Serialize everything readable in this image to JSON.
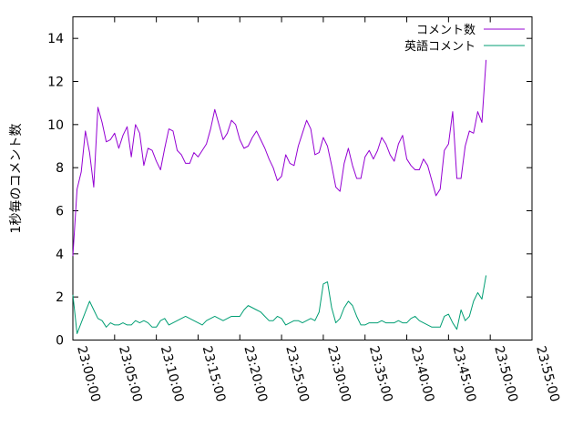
{
  "chart_data": {
    "type": "line",
    "ylabel": "1秒毎のコメント数",
    "xlim": [
      "23:00:00",
      "23:55:00"
    ],
    "ylim": [
      0,
      15
    ],
    "x_ticks": [
      "23:00:00",
      "23:05:00",
      "23:10:00",
      "23:15:00",
      "23:20:00",
      "23:25:00",
      "23:30:00",
      "23:35:00",
      "23:40:00",
      "23:45:00",
      "23:50:00",
      "23:55:00"
    ],
    "y_ticks": [
      "0",
      "2",
      "4",
      "6",
      "8",
      "10",
      "12",
      "14"
    ],
    "legend_position": "top-right",
    "grid": false,
    "series": [
      {
        "name": "コメント数",
        "color": "#9400d3",
        "points": [
          [
            "23:00:00",
            3.9
          ],
          [
            "23:00:30",
            7.0
          ],
          [
            "23:01:00",
            7.8
          ],
          [
            "23:01:30",
            9.7
          ],
          [
            "23:02:00",
            8.7
          ],
          [
            "23:02:30",
            7.1
          ],
          [
            "23:03:00",
            10.8
          ],
          [
            "23:03:30",
            10.1
          ],
          [
            "23:04:00",
            9.2
          ],
          [
            "23:04:30",
            9.3
          ],
          [
            "23:05:00",
            9.6
          ],
          [
            "23:05:30",
            8.9
          ],
          [
            "23:06:00",
            9.5
          ],
          [
            "23:06:30",
            9.9
          ],
          [
            "23:07:00",
            8.5
          ],
          [
            "23:07:30",
            10.0
          ],
          [
            "23:08:00",
            9.6
          ],
          [
            "23:08:30",
            8.1
          ],
          [
            "23:09:00",
            8.9
          ],
          [
            "23:09:30",
            8.8
          ],
          [
            "23:10:00",
            8.3
          ],
          [
            "23:10:30",
            7.9
          ],
          [
            "23:11:00",
            8.9
          ],
          [
            "23:11:30",
            9.8
          ],
          [
            "23:12:00",
            9.7
          ],
          [
            "23:12:30",
            8.8
          ],
          [
            "23:13:00",
            8.6
          ],
          [
            "23:13:30",
            8.2
          ],
          [
            "23:14:00",
            8.2
          ],
          [
            "23:14:30",
            8.7
          ],
          [
            "23:15:00",
            8.5
          ],
          [
            "23:15:30",
            8.8
          ],
          [
            "23:16:00",
            9.1
          ],
          [
            "23:16:30",
            9.8
          ],
          [
            "23:17:00",
            10.7
          ],
          [
            "23:17:30",
            10.0
          ],
          [
            "23:18:00",
            9.3
          ],
          [
            "23:18:30",
            9.6
          ],
          [
            "23:19:00",
            10.2
          ],
          [
            "23:19:30",
            10.0
          ],
          [
            "23:20:00",
            9.3
          ],
          [
            "23:20:30",
            8.9
          ],
          [
            "23:21:00",
            9.0
          ],
          [
            "23:21:30",
            9.4
          ],
          [
            "23:22:00",
            9.7
          ],
          [
            "23:22:30",
            9.3
          ],
          [
            "23:23:00",
            8.9
          ],
          [
            "23:23:30",
            8.4
          ],
          [
            "23:24:00",
            8.0
          ],
          [
            "23:24:30",
            7.4
          ],
          [
            "23:25:00",
            7.6
          ],
          [
            "23:25:30",
            8.6
          ],
          [
            "23:26:00",
            8.2
          ],
          [
            "23:26:30",
            8.1
          ],
          [
            "23:27:00",
            9.0
          ],
          [
            "23:27:30",
            9.6
          ],
          [
            "23:28:00",
            10.2
          ],
          [
            "23:28:30",
            9.8
          ],
          [
            "23:29:00",
            8.6
          ],
          [
            "23:29:30",
            8.7
          ],
          [
            "23:30:00",
            9.4
          ],
          [
            "23:30:30",
            9.0
          ],
          [
            "23:31:00",
            8.1
          ],
          [
            "23:31:30",
            7.1
          ],
          [
            "23:32:00",
            6.9
          ],
          [
            "23:32:30",
            8.2
          ],
          [
            "23:33:00",
            8.9
          ],
          [
            "23:33:30",
            8.1
          ],
          [
            "23:34:00",
            7.5
          ],
          [
            "23:34:30",
            7.5
          ],
          [
            "23:35:00",
            8.5
          ],
          [
            "23:35:30",
            8.8
          ],
          [
            "23:36:00",
            8.4
          ],
          [
            "23:36:30",
            8.8
          ],
          [
            "23:37:00",
            9.4
          ],
          [
            "23:37:30",
            9.1
          ],
          [
            "23:38:00",
            8.6
          ],
          [
            "23:38:30",
            8.3
          ],
          [
            "23:39:00",
            9.1
          ],
          [
            "23:39:30",
            9.5
          ],
          [
            "23:40:00",
            8.4
          ],
          [
            "23:40:30",
            8.1
          ],
          [
            "23:41:00",
            7.9
          ],
          [
            "23:41:30",
            7.9
          ],
          [
            "23:42:00",
            8.4
          ],
          [
            "23:42:30",
            8.1
          ],
          [
            "23:43:00",
            7.4
          ],
          [
            "23:43:30",
            6.7
          ],
          [
            "23:44:00",
            7.0
          ],
          [
            "23:44:30",
            8.8
          ],
          [
            "23:45:00",
            9.1
          ],
          [
            "23:45:30",
            10.6
          ],
          [
            "23:46:00",
            7.5
          ],
          [
            "23:46:30",
            7.5
          ],
          [
            "23:47:00",
            9.0
          ],
          [
            "23:47:30",
            9.7
          ],
          [
            "23:48:00",
            9.6
          ],
          [
            "23:48:30",
            10.6
          ],
          [
            "23:49:00",
            10.1
          ],
          [
            "23:49:30",
            13.0
          ]
        ]
      },
      {
        "name": "英語コメント",
        "color": "#009e73",
        "points": [
          [
            "23:00:00",
            2.1
          ],
          [
            "23:00:30",
            0.3
          ],
          [
            "23:01:00",
            0.8
          ],
          [
            "23:01:30",
            1.3
          ],
          [
            "23:02:00",
            1.8
          ],
          [
            "23:02:30",
            1.4
          ],
          [
            "23:03:00",
            1.0
          ],
          [
            "23:03:30",
            0.9
          ],
          [
            "23:04:00",
            0.6
          ],
          [
            "23:04:30",
            0.8
          ],
          [
            "23:05:00",
            0.7
          ],
          [
            "23:05:30",
            0.7
          ],
          [
            "23:06:00",
            0.8
          ],
          [
            "23:06:30",
            0.7
          ],
          [
            "23:07:00",
            0.7
          ],
          [
            "23:07:30",
            0.9
          ],
          [
            "23:08:00",
            0.8
          ],
          [
            "23:08:30",
            0.9
          ],
          [
            "23:09:00",
            0.8
          ],
          [
            "23:09:30",
            0.6
          ],
          [
            "23:10:00",
            0.6
          ],
          [
            "23:10:30",
            0.9
          ],
          [
            "23:11:00",
            1.0
          ],
          [
            "23:11:30",
            0.7
          ],
          [
            "23:12:00",
            0.8
          ],
          [
            "23:12:30",
            0.9
          ],
          [
            "23:13:00",
            1.0
          ],
          [
            "23:13:30",
            1.1
          ],
          [
            "23:14:00",
            1.0
          ],
          [
            "23:14:30",
            0.9
          ],
          [
            "23:15:00",
            0.8
          ],
          [
            "23:15:30",
            0.7
          ],
          [
            "23:16:00",
            0.9
          ],
          [
            "23:16:30",
            1.0
          ],
          [
            "23:17:00",
            1.1
          ],
          [
            "23:17:30",
            1.0
          ],
          [
            "23:18:00",
            0.9
          ],
          [
            "23:18:30",
            1.0
          ],
          [
            "23:19:00",
            1.1
          ],
          [
            "23:19:30",
            1.1
          ],
          [
            "23:20:00",
            1.1
          ],
          [
            "23:20:30",
            1.4
          ],
          [
            "23:21:00",
            1.6
          ],
          [
            "23:21:30",
            1.5
          ],
          [
            "23:22:00",
            1.4
          ],
          [
            "23:22:30",
            1.3
          ],
          [
            "23:23:00",
            1.1
          ],
          [
            "23:23:30",
            0.9
          ],
          [
            "23:24:00",
            0.9
          ],
          [
            "23:24:30",
            1.1
          ],
          [
            "23:25:00",
            1.0
          ],
          [
            "23:25:30",
            0.7
          ],
          [
            "23:26:00",
            0.8
          ],
          [
            "23:26:30",
            0.9
          ],
          [
            "23:27:00",
            0.9
          ],
          [
            "23:27:30",
            0.8
          ],
          [
            "23:28:00",
            0.9
          ],
          [
            "23:28:30",
            1.0
          ],
          [
            "23:29:00",
            0.9
          ],
          [
            "23:29:30",
            1.3
          ],
          [
            "23:30:00",
            2.6
          ],
          [
            "23:30:30",
            2.7
          ],
          [
            "23:31:00",
            1.5
          ],
          [
            "23:31:30",
            0.8
          ],
          [
            "23:32:00",
            1.0
          ],
          [
            "23:32:30",
            1.5
          ],
          [
            "23:33:00",
            1.8
          ],
          [
            "23:33:30",
            1.6
          ],
          [
            "23:34:00",
            1.1
          ],
          [
            "23:34:30",
            0.7
          ],
          [
            "23:35:00",
            0.7
          ],
          [
            "23:35:30",
            0.8
          ],
          [
            "23:36:00",
            0.8
          ],
          [
            "23:36:30",
            0.8
          ],
          [
            "23:37:00",
            0.9
          ],
          [
            "23:37:30",
            0.8
          ],
          [
            "23:38:00",
            0.8
          ],
          [
            "23:38:30",
            0.8
          ],
          [
            "23:39:00",
            0.9
          ],
          [
            "23:39:30",
            0.8
          ],
          [
            "23:40:00",
            0.8
          ],
          [
            "23:40:30",
            1.0
          ],
          [
            "23:41:00",
            1.1
          ],
          [
            "23:41:30",
            0.9
          ],
          [
            "23:42:00",
            0.8
          ],
          [
            "23:42:30",
            0.7
          ],
          [
            "23:43:00",
            0.6
          ],
          [
            "23:43:30",
            0.6
          ],
          [
            "23:44:00",
            0.6
          ],
          [
            "23:44:30",
            1.1
          ],
          [
            "23:45:00",
            1.2
          ],
          [
            "23:45:30",
            0.8
          ],
          [
            "23:46:00",
            0.5
          ],
          [
            "23:46:30",
            1.4
          ],
          [
            "23:47:00",
            0.9
          ],
          [
            "23:47:30",
            1.1
          ],
          [
            "23:48:00",
            1.8
          ],
          [
            "23:48:30",
            2.2
          ],
          [
            "23:49:00",
            1.9
          ],
          [
            "23:49:30",
            3.0
          ]
        ]
      }
    ]
  }
}
